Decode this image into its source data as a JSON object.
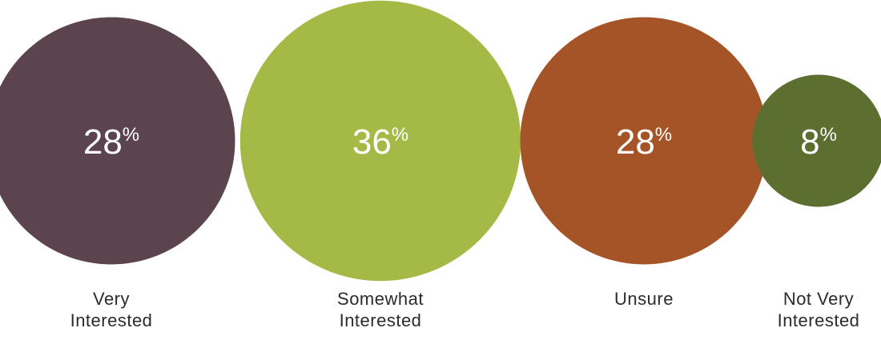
{
  "chart_data": {
    "type": "bubble",
    "categories": [
      [
        "Very",
        "Interested"
      ],
      [
        "Somewhat",
        "Interested"
      ],
      [
        "Unsure"
      ],
      [
        "Not Very",
        "Interested"
      ]
    ],
    "values": [
      28,
      36,
      28,
      8
    ],
    "unit": "%",
    "colors": [
      "#5b444e",
      "#a5b947",
      "#a55427",
      "#5c6e30"
    ],
    "title": "",
    "xlabel": "",
    "ylabel": ""
  }
}
